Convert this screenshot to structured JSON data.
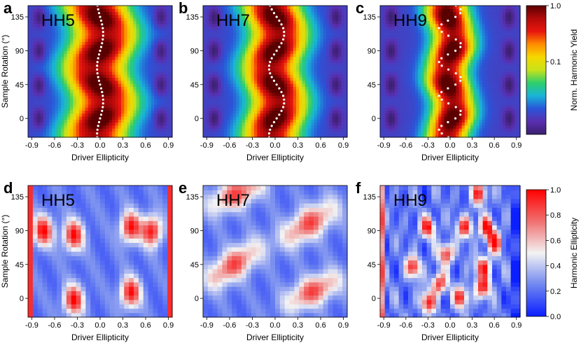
{
  "chart_data": {
    "type": "heatmap",
    "panels": [
      {
        "letter": "a",
        "label": "HH5",
        "row": "top",
        "xlabel": "Driver Ellipticity",
        "ylabel": "Sample Rotation (°)",
        "dotted_line": true
      },
      {
        "letter": "b",
        "label": "HH7",
        "row": "top",
        "xlabel": "Driver Ellipticity",
        "ylabel": "",
        "dotted_line": true
      },
      {
        "letter": "c",
        "label": "HH9",
        "row": "top",
        "xlabel": "Driver Ellipticity",
        "ylabel": "",
        "dotted_line": true
      },
      {
        "letter": "d",
        "label": "HH5",
        "row": "bottom",
        "xlabel": "Driver Ellipticity",
        "ylabel": "Sample Rotation (°)",
        "dotted_line": false
      },
      {
        "letter": "e",
        "label": "HH7",
        "row": "bottom",
        "xlabel": "Driver Ellipticity",
        "ylabel": "",
        "dotted_line": false
      },
      {
        "letter": "f",
        "label": "HH9",
        "row": "bottom",
        "xlabel": "Driver Ellipticity",
        "ylabel": "",
        "dotted_line": false
      }
    ],
    "x_ticks": [
      "-0.9",
      "-0.6",
      "-0.3",
      "0.0",
      "0.3",
      "0.6",
      "0.9"
    ],
    "y_ticks": [
      "0",
      "45",
      "90",
      "135"
    ],
    "xlim": [
      -0.95,
      0.95
    ],
    "ylim": [
      -25,
      150
    ],
    "top_colorbar": {
      "label": "Norm. Harmonic Yield",
      "ticks": [
        "1.0",
        "0.1"
      ],
      "scale": "log",
      "colors": [
        "#3b1f6e",
        "#5a2fb0",
        "#2a55d8",
        "#18b4d8",
        "#2ecf6a",
        "#c8e21a",
        "#f5d800",
        "#ff8c00",
        "#e8160e",
        "#b30a0a",
        "#5a0000"
      ]
    },
    "bottom_colorbar": {
      "label": "Harmonic Ellipticity",
      "ticks": [
        "0.0",
        "0.2",
        "0.4",
        "0.6",
        "0.8",
        "1.0"
      ],
      "range": [
        0,
        1
      ],
      "colors": [
        "#0a1eff",
        "#6f86f0",
        "#f3f3f3",
        "#f07070",
        "#ff0000"
      ]
    }
  }
}
